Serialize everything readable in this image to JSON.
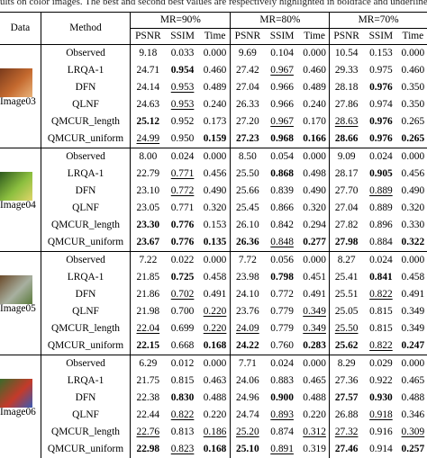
{
  "caption": "ults on color images. The best and second best values are respectively highlighted in boldface and underlined.",
  "header": {
    "data": "Data",
    "method": "Method",
    "groups": [
      "MR=90%",
      "MR=80%",
      "MR=70%"
    ],
    "metrics": [
      "PSNR",
      "SSIM",
      "Time"
    ]
  },
  "blocks": [
    {
      "image": "Image03",
      "thumb_colors": [
        "#7a3b1c",
        "#c56a2f",
        "#e9b37a"
      ],
      "rows": [
        {
          "method": "Observed",
          "vals": [
            "9.18",
            "0.033",
            "0.000",
            "9.69",
            "0.104",
            "0.000",
            "10.54",
            "0.153",
            "0.000"
          ],
          "style": [
            "",
            "",
            "",
            "",
            "",
            "",
            "",
            "",
            ""
          ]
        },
        {
          "method": "LRQA-1",
          "vals": [
            "24.71",
            "0.954",
            "0.460",
            "27.42",
            "0.967",
            "0.460",
            "29.33",
            "0.975",
            "0.460"
          ],
          "style": [
            "",
            "b",
            "",
            "",
            "u",
            "",
            "",
            "",
            ""
          ]
        },
        {
          "method": "DFN",
          "vals": [
            "24.14",
            "0.953",
            "0.489",
            "27.04",
            "0.966",
            "0.489",
            "28.18",
            "0.976",
            "0.350"
          ],
          "style": [
            "",
            "u",
            "",
            "",
            "",
            "",
            "",
            "b",
            ""
          ]
        },
        {
          "method": "QLNF",
          "vals": [
            "24.63",
            "0.953",
            "0.240",
            "26.33",
            "0.966",
            "0.240",
            "27.86",
            "0.974",
            "0.350"
          ],
          "style": [
            "",
            "u",
            "",
            "",
            "",
            "",
            "",
            "",
            ""
          ]
        },
        {
          "method": "QMCUR_length",
          "vals": [
            "25.12",
            "0.952",
            "0.173",
            "27.20",
            "0.967",
            "0.170",
            "28.63",
            "0.976",
            "0.265"
          ],
          "style": [
            "b",
            "",
            "",
            "",
            "u",
            "",
            "u",
            "b",
            ""
          ]
        },
        {
          "method": "QMCUR_uniform",
          "vals": [
            "24.99",
            "0.950",
            "0.159",
            "27.23",
            "0.968",
            "0.166",
            "28.66",
            "0.976",
            "0.265"
          ],
          "style": [
            "u",
            "",
            "b",
            "b",
            "b",
            "b",
            "b",
            "b",
            "b"
          ]
        }
      ]
    },
    {
      "image": "Image04",
      "thumb_colors": [
        "#2e5a1e",
        "#8cbf3f",
        "#e0d56a"
      ],
      "rows": [
        {
          "method": "Observed",
          "vals": [
            "8.00",
            "0.024",
            "0.000",
            "8.50",
            "0.054",
            "0.000",
            "9.09",
            "0.024",
            "0.000"
          ],
          "style": [
            "",
            "",
            "",
            "",
            "",
            "",
            "",
            "",
            ""
          ]
        },
        {
          "method": "LRQA-1",
          "vals": [
            "22.79",
            "0.771",
            "0.456",
            "25.50",
            "0.868",
            "0.498",
            "28.17",
            "0.905",
            "0.456"
          ],
          "style": [
            "",
            "u",
            "",
            "",
            "b",
            "",
            "",
            "b",
            ""
          ]
        },
        {
          "method": "DFN",
          "vals": [
            "23.10",
            "0.772",
            "0.490",
            "25.66",
            "0.839",
            "0.490",
            "27.70",
            "0.889",
            "0.490"
          ],
          "style": [
            "",
            "u",
            "",
            "",
            "",
            "",
            "",
            "u",
            ""
          ]
        },
        {
          "method": "QLNF",
          "vals": [
            "23.05",
            "0.771",
            "0.320",
            "25.45",
            "0.866",
            "0.320",
            "27.04",
            "0.889",
            "0.320"
          ],
          "style": [
            "",
            "",
            "",
            "",
            "",
            "",
            "",
            "",
            ""
          ]
        },
        {
          "method": "QMCUR_length",
          "vals": [
            "23.30",
            "0.776",
            "0.153",
            "26.10",
            "0.842",
            "0.294",
            "27.82",
            "0.896",
            "0.330"
          ],
          "style": [
            "b",
            "b",
            "",
            "",
            "",
            "",
            "",
            "",
            ""
          ]
        },
        {
          "method": "QMCUR_uniform",
          "vals": [
            "23.67",
            "0.776",
            "0.135",
            "26.36",
            "0.848",
            "0.277",
            "27.98",
            "0.884",
            "0.322"
          ],
          "style": [
            "b",
            "b",
            "b",
            "b",
            "u",
            "b",
            "b",
            "",
            "b"
          ]
        }
      ]
    },
    {
      "image": "Image05",
      "thumb_colors": [
        "#6b4a2a",
        "#a8b0a0",
        "#5a7a3a"
      ],
      "rows": [
        {
          "method": "Observed",
          "vals": [
            "7.22",
            "0.022",
            "0.000",
            "7.72",
            "0.056",
            "0.000",
            "8.27",
            "0.024",
            "0.000"
          ],
          "style": [
            "",
            "",
            "",
            "",
            "",
            "",
            "",
            "",
            ""
          ]
        },
        {
          "method": "LRQA-1",
          "vals": [
            "21.85",
            "0.725",
            "0.458",
            "23.98",
            "0.798",
            "0.451",
            "25.41",
            "0.841",
            "0.458"
          ],
          "style": [
            "",
            "b",
            "",
            "",
            "b",
            "",
            "",
            "b",
            ""
          ]
        },
        {
          "method": "DFN",
          "vals": [
            "21.86",
            "0.702",
            "0.491",
            "24.10",
            "0.772",
            "0.491",
            "25.51",
            "0.822",
            "0.491"
          ],
          "style": [
            "",
            "u",
            "",
            "",
            "",
            "",
            "",
            "u",
            ""
          ]
        },
        {
          "method": "QLNF",
          "vals": [
            "21.98",
            "0.700",
            "0.220",
            "23.76",
            "0.779",
            "0.349",
            "25.05",
            "0.815",
            "0.349"
          ],
          "style": [
            "",
            "",
            "u",
            "",
            "",
            "u",
            "",
            "",
            ""
          ]
        },
        {
          "method": "QMCUR_length",
          "vals": [
            "22.04",
            "0.699",
            "0.220",
            "24.09",
            "0.779",
            "0.349",
            "25.50",
            "0.815",
            "0.349"
          ],
          "style": [
            "u",
            "",
            "u",
            "u",
            "",
            "u",
            "u",
            "",
            ""
          ]
        },
        {
          "method": "QMCUR_uniform",
          "vals": [
            "22.15",
            "0.668",
            "0.168",
            "24.22",
            "0.760",
            "0.283",
            "25.62",
            "0.822",
            "0.247"
          ],
          "style": [
            "b",
            "",
            "b",
            "b",
            "",
            "b",
            "b",
            "u",
            "b"
          ]
        }
      ]
    },
    {
      "image": "Image06",
      "thumb_colors": [
        "#3a6a2a",
        "#c43a2a",
        "#3a5ab4"
      ],
      "rows": [
        {
          "method": "Observed",
          "vals": [
            "6.29",
            "0.012",
            "0.000",
            "7.71",
            "0.024",
            "0.000",
            "8.29",
            "0.029",
            "0.000"
          ],
          "style": [
            "",
            "",
            "",
            "",
            "",
            "",
            "",
            "",
            ""
          ]
        },
        {
          "method": "LRQA-1",
          "vals": [
            "21.75",
            "0.815",
            "0.463",
            "24.06",
            "0.883",
            "0.465",
            "27.36",
            "0.922",
            "0.465"
          ],
          "style": [
            "",
            "",
            "",
            "",
            "",
            "",
            "",
            "",
            ""
          ]
        },
        {
          "method": "DFN",
          "vals": [
            "22.38",
            "0.830",
            "0.488",
            "24.96",
            "0.900",
            "0.488",
            "27.57",
            "0.930",
            "0.488"
          ],
          "style": [
            "",
            "b",
            "",
            "",
            "b",
            "",
            "b",
            "b",
            ""
          ]
        },
        {
          "method": "QLNF",
          "vals": [
            "22.44",
            "0.822",
            "0.220",
            "24.74",
            "0.893",
            "0.220",
            "26.88",
            "0.918",
            "0.346"
          ],
          "style": [
            "",
            "u",
            "",
            "",
            "u",
            "",
            "",
            "u",
            ""
          ]
        },
        {
          "method": "QMCUR_length",
          "vals": [
            "22.76",
            "0.813",
            "0.186",
            "25.20",
            "0.874",
            "0.312",
            "27.32",
            "0.916",
            "0.309"
          ],
          "style": [
            "u",
            "",
            "u",
            "u",
            "",
            "u",
            "u",
            "",
            "u"
          ]
        },
        {
          "method": "QMCUR_uniform",
          "vals": [
            "22.98",
            "0.823",
            "0.168",
            "25.10",
            "0.891",
            "0.319",
            "27.46",
            "0.914",
            "0.257"
          ],
          "style": [
            "b",
            "u",
            "b",
            "b",
            "u",
            "",
            "b",
            "",
            "b"
          ]
        }
      ]
    }
  ]
}
